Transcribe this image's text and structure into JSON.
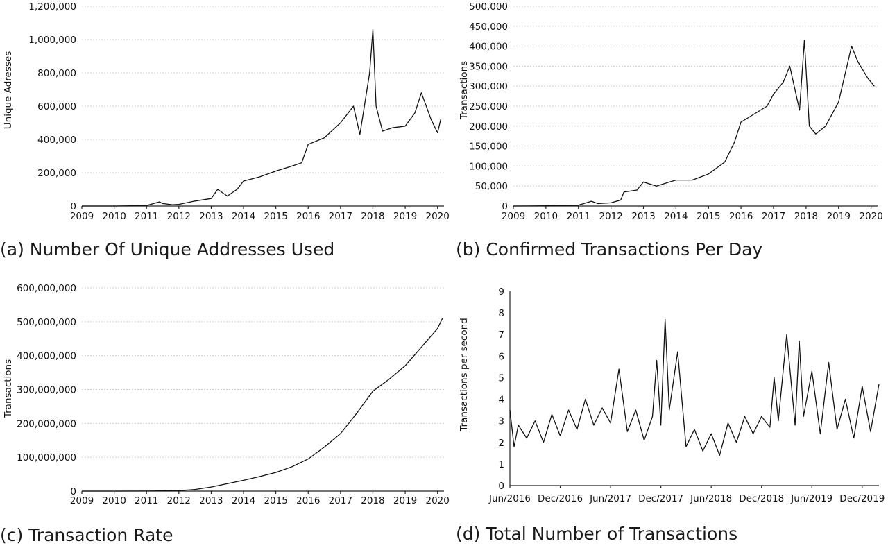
{
  "chart_data": [
    {
      "id": "a",
      "type": "line",
      "caption": "(a) Number Of Unique Addresses Used",
      "ylabel": "Unique Adresses",
      "xlim": [
        2009,
        2020.2
      ],
      "ylim": [
        0,
        1200000
      ],
      "xticks": [
        2009,
        2010,
        2011,
        2012,
        2013,
        2014,
        2015,
        2016,
        2017,
        2018,
        2019,
        2020
      ],
      "xtick_labels": [
        "2009",
        "2010",
        "2011",
        "2012",
        "2013",
        "2014",
        "2015",
        "2016",
        "2017",
        "2018",
        "2019",
        "2020"
      ],
      "yticks": [
        0,
        200000,
        400000,
        600000,
        800000,
        1000000,
        1200000
      ],
      "ytick_labels": [
        "0",
        "200,000",
        "400,000",
        "600,000",
        "800,000",
        "1,000,000",
        "1,200,000"
      ],
      "grid": true,
      "series": [
        {
          "x": [
            2009,
            2010,
            2011,
            2011.4,
            2011.5,
            2011.8,
            2012,
            2012.5,
            2013,
            2013.2,
            2013.5,
            2013.8,
            2014,
            2014.5,
            2015,
            2015.5,
            2015.8,
            2016,
            2016.5,
            2017,
            2017.4,
            2017.6,
            2017.9,
            2018,
            2018.1,
            2018.3,
            2018.6,
            2019,
            2019.3,
            2019.5,
            2019.8,
            2020,
            2020.1
          ],
          "y": [
            0,
            0,
            3000,
            25000,
            15000,
            8000,
            10000,
            30000,
            45000,
            100000,
            60000,
            100000,
            150000,
            175000,
            210000,
            240000,
            260000,
            370000,
            410000,
            500000,
            600000,
            430000,
            800000,
            1060000,
            600000,
            450000,
            470000,
            480000,
            560000,
            680000,
            520000,
            440000,
            520000
          ]
        }
      ]
    },
    {
      "id": "b",
      "type": "line",
      "caption": "(b) Confirmed Transactions Per Day",
      "ylabel": "Transactions",
      "xlim": [
        2009,
        2020.2
      ],
      "ylim": [
        0,
        500000
      ],
      "xticks": [
        2009,
        2010,
        2011,
        2012,
        2013,
        2014,
        2015,
        2016,
        2017,
        2018,
        2019,
        2020
      ],
      "xtick_labels": [
        "2009",
        "2010",
        "2011",
        "2012",
        "2013",
        "2014",
        "2015",
        "2016",
        "2017",
        "2018",
        "2019",
        "2020"
      ],
      "yticks": [
        0,
        50000,
        100000,
        150000,
        200000,
        250000,
        300000,
        350000,
        400000,
        450000,
        500000
      ],
      "ytick_labels": [
        "0",
        "50,000",
        "100,000",
        "150,000",
        "200,000",
        "250,000",
        "300,000",
        "350,000",
        "400,000",
        "450,000",
        "500,000"
      ],
      "grid": true,
      "series": [
        {
          "x": [
            2009,
            2010,
            2011,
            2011.4,
            2011.6,
            2012,
            2012.3,
            2012.4,
            2012.8,
            2013,
            2013.4,
            2013.8,
            2014,
            2014.5,
            2015,
            2015.5,
            2015.8,
            2016,
            2016.4,
            2016.8,
            2017,
            2017.3,
            2017.5,
            2017.8,
            2017.95,
            2018.1,
            2018.3,
            2018.6,
            2019,
            2019.2,
            2019.4,
            2019.6,
            2019.9,
            2020.1
          ],
          "y": [
            0,
            500,
            2000,
            12000,
            6000,
            8000,
            15000,
            35000,
            40000,
            60000,
            50000,
            60000,
            65000,
            65000,
            80000,
            110000,
            160000,
            210000,
            230000,
            250000,
            280000,
            310000,
            350000,
            240000,
            415000,
            200000,
            180000,
            200000,
            260000,
            330000,
            400000,
            360000,
            320000,
            300000
          ]
        }
      ]
    },
    {
      "id": "c",
      "type": "line",
      "caption": "(c) Transaction Rate",
      "ylabel": "Transactions",
      "xlim": [
        2009,
        2020.2
      ],
      "ylim": [
        0,
        600000000
      ],
      "xticks": [
        2009,
        2010,
        2011,
        2012,
        2013,
        2014,
        2015,
        2016,
        2017,
        2018,
        2019,
        2020
      ],
      "xtick_labels": [
        "2009",
        "2010",
        "2011",
        "2012",
        "2013",
        "2014",
        "2015",
        "2016",
        "2017",
        "2018",
        "2019",
        "2020"
      ],
      "yticks": [
        0,
        100000000,
        200000000,
        300000000,
        400000000,
        500000000,
        600000000
      ],
      "ytick_labels": [
        "0",
        "100,000,000",
        "200,000,000",
        "300,000,000",
        "400,000,000",
        "500,000,000",
        "600,000,000"
      ],
      "grid": true,
      "series": [
        {
          "x": [
            2009,
            2010,
            2011,
            2012,
            2012.5,
            2013,
            2013.5,
            2014,
            2014.5,
            2015,
            2015.5,
            2016,
            2016.5,
            2017,
            2017.5,
            2018,
            2018.5,
            2019,
            2019.5,
            2020,
            2020.15
          ],
          "y": [
            0,
            0,
            200000,
            1500000,
            5000000,
            12000000,
            22000000,
            32000000,
            43000000,
            55000000,
            72000000,
            95000000,
            130000000,
            170000000,
            230000000,
            295000000,
            330000000,
            370000000,
            425000000,
            480000000,
            510000000
          ]
        }
      ]
    },
    {
      "id": "d",
      "type": "line",
      "caption": "(d) Total Number of Transactions",
      "ylabel": "Transactions per second",
      "xlim": [
        0,
        44
      ],
      "ylim": [
        0,
        9
      ],
      "xticks": [
        0,
        6,
        12,
        18,
        24,
        30,
        36,
        42
      ],
      "xtick_labels": [
        "Jun/2016",
        "Dec/2016",
        "Jun/2017",
        "Dec/2017",
        "Jun/2018",
        "Dec/2018",
        "Jun/2019",
        "Dec/2019"
      ],
      "yticks": [
        0,
        1,
        2,
        3,
        4,
        5,
        6,
        7,
        8,
        9
      ],
      "ytick_labels": [
        "0",
        "1",
        "2",
        "3",
        "4",
        "5",
        "6",
        "7",
        "8",
        "9"
      ],
      "grid": false,
      "series": [
        {
          "x": [
            0,
            0.5,
            1,
            2,
            3,
            4,
            5,
            6,
            7,
            8,
            9,
            10,
            11,
            12,
            13,
            14,
            15,
            16,
            17,
            17.5,
            18,
            18.5,
            19,
            20,
            21,
            22,
            23,
            24,
            25,
            26,
            27,
            28,
            29,
            30,
            31,
            31.5,
            32,
            33,
            34,
            34.5,
            35,
            36,
            37,
            38,
            39,
            40,
            41,
            42,
            43,
            44
          ],
          "y": [
            3.5,
            1.8,
            2.8,
            2.2,
            3.0,
            2.0,
            3.3,
            2.3,
            3.5,
            2.6,
            4.0,
            2.8,
            3.6,
            2.9,
            5.4,
            2.5,
            3.5,
            2.1,
            3.2,
            5.8,
            2.8,
            7.7,
            3.5,
            6.2,
            1.8,
            2.6,
            1.6,
            2.4,
            1.4,
            2.9,
            2.0,
            3.2,
            2.4,
            3.2,
            2.7,
            5.0,
            3.0,
            7.0,
            2.8,
            6.7,
            3.2,
            5.3,
            2.4,
            5.7,
            2.6,
            4.0,
            2.2,
            4.6,
            2.5,
            4.7
          ]
        }
      ]
    }
  ]
}
